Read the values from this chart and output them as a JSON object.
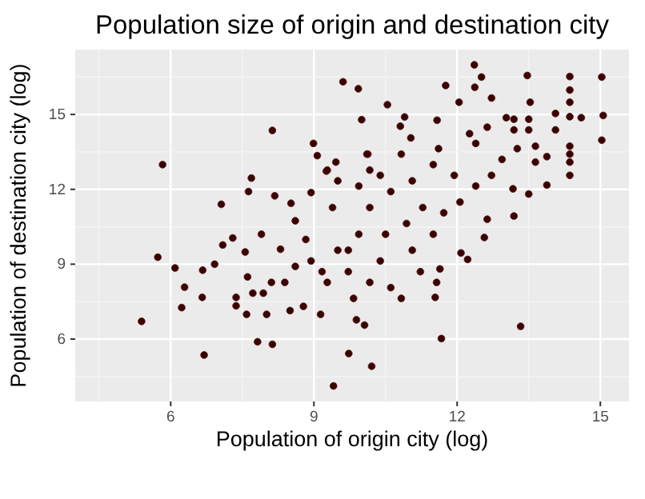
{
  "chart_data": {
    "type": "scatter",
    "title": "Population size of origin and destination city",
    "xlabel": "Population of origin city (log)",
    "ylabel": "Population of destination city (log)",
    "xlim": [
      4.0,
      15.6
    ],
    "ylim": [
      3.5,
      17.6
    ],
    "xticks": [
      6,
      9,
      12,
      15
    ],
    "yticks": [
      6,
      9,
      12,
      15
    ],
    "grid": true,
    "marker": "circle",
    "series": [
      {
        "color": "#3a0000",
        "x": [
          5.39,
          5.73,
          5.83,
          6.09,
          6.29,
          6.23,
          6.7,
          6.67,
          6.66,
          6.92,
          7.06,
          7.09,
          7.3,
          7.37,
          7.37,
          7.59,
          7.69,
          7.63,
          8.13,
          7.82,
          8.13,
          8.18,
          7.9,
          7.56,
          8.01,
          7.72,
          8.11,
          8.52,
          8.3,
          8.5,
          8.78,
          9.14,
          8.99,
          9.07,
          9.26,
          8.94,
          8.61,
          9.41,
          9.73,
          10.21,
          9.61,
          9.93,
          10.0,
          10.13,
          9.46,
          10.06,
          9.89,
          8.94,
          9.5,
          9.94,
          8.39,
          9.28,
          9.72,
          8.83,
          9.39,
          10.17,
          9.94,
          10.39,
          9.17,
          8.61,
          7.94,
          7.61,
          12.36,
          12.51,
          12.37,
          12.72,
          11.76,
          12.04,
          13.47,
          14.36,
          14.36,
          14.36,
          14.36,
          14.36,
          14.36,
          14.36,
          14.36,
          15.03,
          15.06,
          15.03,
          14.6,
          14.06,
          14.06,
          13.88,
          13.88,
          13.64,
          13.64,
          13.53,
          13.5,
          13.5,
          13.5,
          13.19,
          13.19,
          13.03,
          13.26,
          13.17,
          13.19,
          13.33,
          11.67,
          11.54,
          11.57,
          11.64,
          11.23,
          12.08,
          12.22,
          12.57,
          12.63,
          10.83,
          10.54,
          10.9,
          10.81,
          11.58,
          11.03,
          12.26,
          12.63,
          12.39,
          12.94,
          12.72,
          12.39,
          11.94,
          11.5,
          11.06,
          10.61,
          11.72,
          12.06,
          11.28,
          10.94,
          10.5,
          11.5,
          11.06,
          10.39,
          10.17,
          9.83,
          10.61,
          9.5,
          10.17,
          9.72,
          10.11,
          9.28,
          10.83,
          11.61
        ],
        "values": [
          6.71,
          9.28,
          12.99,
          8.85,
          8.08,
          7.26,
          5.36,
          8.76,
          7.67,
          9.0,
          11.4,
          9.77,
          10.05,
          7.67,
          7.33,
          6.99,
          12.45,
          11.91,
          14.36,
          5.89,
          5.79,
          11.74,
          10.2,
          9.49,
          6.99,
          7.84,
          8.27,
          11.44,
          9.6,
          7.14,
          7.31,
          6.99,
          13.84,
          13.35,
          12.73,
          11.87,
          10.74,
          4.12,
          5.42,
          4.91,
          16.31,
          16.03,
          14.79,
          13.41,
          13.09,
          6.56,
          6.77,
          9.13,
          9.56,
          10.2,
          8.27,
          8.27,
          8.7,
          9.99,
          11.27,
          11.27,
          12.13,
          12.56,
          8.7,
          8.91,
          7.84,
          8.49,
          16.99,
          16.5,
          16.09,
          15.66,
          16.16,
          15.49,
          16.56,
          16.52,
          15.98,
          15.49,
          14.91,
          13.73,
          13.41,
          13.09,
          12.56,
          16.5,
          14.96,
          13.97,
          14.87,
          15.04,
          14.38,
          13.31,
          12.17,
          13.73,
          13.09,
          15.49,
          14.81,
          14.38,
          11.81,
          14.81,
          14.38,
          14.87,
          13.63,
          12.02,
          10.93,
          6.51,
          6.02,
          7.67,
          8.27,
          8.81,
          8.7,
          9.45,
          9.19,
          10.07,
          10.8,
          7.63,
          15.39,
          14.9,
          14.53,
          14.77,
          14.06,
          14.23,
          14.49,
          13.84,
          13.2,
          12.56,
          12.13,
          12.56,
          12.99,
          12.34,
          11.91,
          11.06,
          11.49,
          11.27,
          10.63,
          10.2,
          10.2,
          9.56,
          9.13,
          8.27,
          7.63,
          8.06,
          12.34,
          12.77,
          9.56,
          13.41,
          12.77,
          13.41,
          13.63
        ]
      }
    ]
  }
}
